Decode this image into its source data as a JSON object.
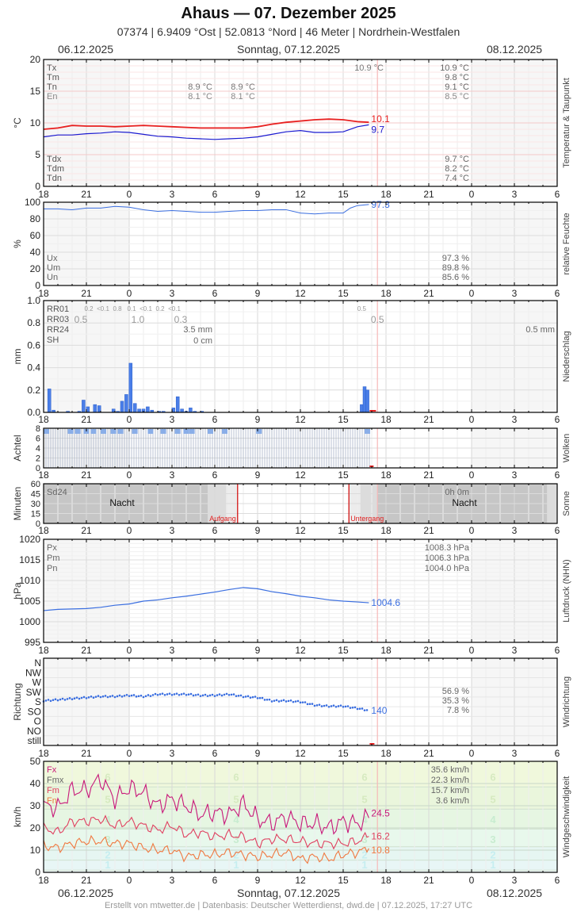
{
  "header": {
    "title": "Ahaus  —  07. Dezember 2025",
    "subtitle": "07374  |  6.9409 °Ost  |  52.0813 °Nord  |  46 Meter  |  Nordrhein-Westfalen",
    "date_left": "06.12.2025",
    "date_center": "Sonntag, 07.12.2025",
    "date_right": "08.12.2025"
  },
  "footer": {
    "credit": "Erstellt von mtwetter.de | Datenbasis: Deutscher Wetterdienst, dwd.de | 07.12.2025, 17:27 UTC"
  },
  "x_axis": {
    "ticks": [
      "18",
      "21",
      "0",
      "3",
      "6",
      "9",
      "12",
      "15",
      "18",
      "21",
      "0",
      "3",
      "6"
    ],
    "now_hour_offset": 23.4
  },
  "chart_data": [
    {
      "id": "temperature",
      "type": "line",
      "title": "Temperatur & Taupunkt",
      "ylabel": "°C",
      "ylim": [
        0,
        20
      ],
      "yticks": [
        "0",
        "5",
        "10",
        "15",
        "20"
      ],
      "series": [
        {
          "name": "Temperatur",
          "color": "#e82020",
          "last_label": "10.1",
          "x": [
            0,
            1,
            2,
            3,
            4,
            5,
            6,
            7,
            8,
            9,
            10,
            11,
            12,
            13,
            14,
            15,
            16,
            17,
            18,
            19,
            20,
            21,
            22,
            22.8
          ],
          "values": [
            9.0,
            9.2,
            9.6,
            9.5,
            9.5,
            9.4,
            9.5,
            9.6,
            9.5,
            9.4,
            9.3,
            9.2,
            9.2,
            9.2,
            9.2,
            9.4,
            9.8,
            10.1,
            10.3,
            10.5,
            10.6,
            10.5,
            10.2,
            10.1
          ]
        },
        {
          "name": "Taupunkt",
          "color": "#1a1ad0",
          "last_label": "9.7",
          "x": [
            0,
            1,
            2,
            3,
            4,
            5,
            6,
            7,
            8,
            9,
            10,
            11,
            12,
            13,
            14,
            15,
            16,
            17,
            18,
            19,
            20,
            21,
            22,
            22.8
          ],
          "values": [
            7.8,
            8.1,
            8.1,
            8.3,
            8.4,
            8.6,
            8.5,
            8.2,
            7.9,
            7.8,
            7.6,
            7.5,
            7.4,
            7.5,
            7.6,
            7.8,
            8.2,
            8.6,
            8.8,
            8.5,
            8.5,
            8.6,
            9.4,
            9.7
          ]
        }
      ],
      "stats_left": {
        "Tx": "",
        "Tm": "",
        "Tn": "",
        "En": ""
      },
      "stats_mid": [
        {
          "Tn": "8.9 °C",
          "En": "8.1 °C"
        },
        {
          "Tn": "8.9 °C",
          "En": "8.1 °C"
        }
      ],
      "stats_center_tx": "10.9 °C",
      "stats_right": {
        "Tx": "10.9 °C",
        "Tm": "9.8 °C",
        "Tn": "9.1 °C",
        "En": "8.5 °C",
        "Tdx": "9.7 °C",
        "Tdm": "8.2 °C",
        "Tdn": "7.4 °C"
      },
      "labels": {
        "Tx": "Tx",
        "Tm": "Tm",
        "Tn": "Tn",
        "En": "En",
        "Tdx": "Tdx",
        "Tdm": "Tdm",
        "Tdn": "Tdn"
      }
    },
    {
      "id": "humidity",
      "type": "line",
      "title": "relative Feuchte",
      "ylabel": "%",
      "ylim": [
        0,
        100
      ],
      "yticks": [
        "0",
        "20",
        "40",
        "60",
        "80",
        "100"
      ],
      "series": [
        {
          "name": "Feuchte",
          "color": "#3a6ee0",
          "last_label": "97.3",
          "x": [
            0,
            1,
            2,
            3,
            4,
            5,
            6,
            7,
            8,
            9,
            10,
            11,
            12,
            13,
            14,
            15,
            16,
            17,
            18,
            19,
            20,
            21,
            21.5,
            22,
            22.8
          ],
          "values": [
            92,
            92,
            91,
            93,
            93,
            95,
            94,
            91,
            89,
            90,
            89,
            88,
            88,
            89,
            90,
            90,
            91,
            91,
            87,
            86,
            87,
            87,
            93,
            96,
            97.3
          ]
        }
      ],
      "labels": {
        "Ux": "Ux",
        "Um": "Um",
        "Un": "Un"
      },
      "stats_right": {
        "Ux": "97.3 %",
        "Um": "89.8 %",
        "Un": "85.6 %"
      }
    },
    {
      "id": "precipitation",
      "type": "bar",
      "title": "Niederschlag",
      "ylabel": "mm",
      "ylim": [
        0,
        1.0
      ],
      "yticks": [
        "0.0",
        "0.2",
        "0.4",
        "0.6",
        "0.8",
        "1.0"
      ],
      "bars": [
        {
          "x": 0.4,
          "v": 0.21
        },
        {
          "x": 0.7,
          "v": 0.02
        },
        {
          "x": 1.7,
          "v": 0.01
        },
        {
          "x": 2.5,
          "v": 0.01
        },
        {
          "x": 2.8,
          "v": 0.11
        },
        {
          "x": 3.1,
          "v": 0.05
        },
        {
          "x": 3.6,
          "v": 0.07
        },
        {
          "x": 3.9,
          "v": 0.06
        },
        {
          "x": 4.9,
          "v": 0.03
        },
        {
          "x": 5.2,
          "v": 0.01
        },
        {
          "x": 5.5,
          "v": 0.1
        },
        {
          "x": 5.8,
          "v": 0.16
        },
        {
          "x": 6.1,
          "v": 0.44
        },
        {
          "x": 6.4,
          "v": 0.08
        },
        {
          "x": 6.7,
          "v": 0.03
        },
        {
          "x": 7.0,
          "v": 0.03
        },
        {
          "x": 7.3,
          "v": 0.05
        },
        {
          "x": 7.6,
          "v": 0.02
        },
        {
          "x": 8.1,
          "v": 0.01
        },
        {
          "x": 8.4,
          "v": 0.01
        },
        {
          "x": 9.1,
          "v": 0.04
        },
        {
          "x": 9.4,
          "v": 0.14
        },
        {
          "x": 9.7,
          "v": 0.03
        },
        {
          "x": 10.0,
          "v": 0.01
        },
        {
          "x": 10.3,
          "v": 0.04
        },
        {
          "x": 10.6,
          "v": 0.01
        },
        {
          "x": 11.1,
          "v": 0.01
        },
        {
          "x": 22.3,
          "v": 0.07
        },
        {
          "x": 22.5,
          "v": 0.23
        },
        {
          "x": 22.7,
          "v": 0.2
        }
      ],
      "labels": {
        "RR01": "RR01",
        "RR03": "RR03",
        "RR24": "RR24",
        "SH": "SH"
      },
      "rr01": [
        {
          "x": 1.0,
          "v": "0.2"
        },
        {
          "x": 2.0,
          "v": "<0.1"
        },
        {
          "x": 3.0,
          "v": "0.8"
        },
        {
          "x": 4.0,
          "v": "0.1"
        },
        {
          "x": 5.0,
          "v": "<0.1"
        },
        {
          "x": 6.0,
          "v": "0.2"
        },
        {
          "x": 7.0,
          "v": "<0.1"
        },
        {
          "x": 22.3,
          "v": "0.5"
        }
      ],
      "rr03": [
        {
          "x": 1.5,
          "v": "0.5"
        },
        {
          "x": 5.5,
          "v": "1.0"
        },
        {
          "x": 8.5,
          "v": "0.3"
        },
        {
          "x": 23.4,
          "v": "0.5"
        }
      ],
      "rr24_left": "3.5 mm",
      "sh_left": "0 cm",
      "rr24_right": "0.5 mm"
    },
    {
      "id": "clouds",
      "type": "bar",
      "title": "Wolken",
      "ylabel": "Achtel",
      "ylim": [
        0,
        8
      ],
      "yticks": [
        "0",
        "2",
        "4",
        "6",
        "8"
      ],
      "note": "Bedeckt (8/8) durchgehend von 18 Uhr bis ca. 17 Uhr, hellblaue Markierungen oben"
    },
    {
      "id": "sunshine",
      "type": "area",
      "title": "Sonne",
      "ylabel": "Minuten",
      "ylim": [
        0,
        60
      ],
      "yticks": [
        "0",
        "15",
        "30",
        "45",
        "60"
      ],
      "labels": {
        "Sd24": "Sd24",
        "night_left": "Nacht",
        "night_right": "Nacht",
        "sunrise": "Aufgang",
        "sunset": "Untergang"
      },
      "sd24_right": "0h 0m",
      "sunrise_hour_offset": 13.6,
      "sunset_hour_offset": 21.4
    },
    {
      "id": "pressure",
      "type": "line",
      "title": "Luftdruck (NHN)",
      "ylabel": "hPa",
      "ylim": [
        995,
        1020
      ],
      "yticks": [
        "995",
        "1000",
        "1005",
        "1010",
        "1015",
        "1020"
      ],
      "series": [
        {
          "name": "Luftdruck",
          "color": "#3a6ee0",
          "last_label": "1004.6",
          "x": [
            0,
            1,
            2,
            3,
            4,
            5,
            6,
            7,
            8,
            9,
            10,
            11,
            12,
            13,
            14,
            15,
            16,
            17,
            18,
            19,
            20,
            21,
            22,
            22.8
          ],
          "values": [
            1002.7,
            1003.0,
            1003.1,
            1003.2,
            1003.5,
            1004.0,
            1004.3,
            1005.0,
            1005.3,
            1005.8,
            1006.2,
            1006.7,
            1007.2,
            1007.8,
            1008.3,
            1008.0,
            1007.3,
            1006.8,
            1006.2,
            1005.8,
            1005.3,
            1005.0,
            1004.8,
            1004.6
          ]
        }
      ],
      "labels": {
        "Px": "Px",
        "Pm": "Pm",
        "Pn": "Pn"
      },
      "stats_right": {
        "Px": "1008.3 hPa",
        "Pm": "1006.3 hPa",
        "Pn": "1004.0 hPa"
      }
    },
    {
      "id": "wind_direction",
      "type": "scatter",
      "title": "Windrichtung",
      "ylabel": "Richtung",
      "yticks": [
        "N",
        "NW",
        "W",
        "SW",
        "S",
        "SO",
        "O",
        "NO",
        "still"
      ],
      "series": [
        {
          "name": "Richtung",
          "color": "#3a6ee0",
          "last_label": "140",
          "x": [
            0,
            1,
            2,
            3,
            4,
            5,
            6,
            7,
            8,
            9,
            10,
            11,
            12,
            13,
            14,
            15,
            16,
            17,
            18,
            19,
            20,
            21,
            22,
            22.8
          ],
          "values": [
            185,
            190,
            195,
            200,
            205,
            205,
            210,
            205,
            215,
            215,
            215,
            210,
            210,
            215,
            205,
            200,
            185,
            185,
            180,
            165,
            160,
            160,
            150,
            140
          ]
        }
      ],
      "stats_right": [
        "56.9 %",
        "35.3 %",
        "7.8 %"
      ]
    },
    {
      "id": "wind_speed",
      "type": "line",
      "title": "Windgeschwindigkeit",
      "ylabel": "km/h",
      "ylim": [
        0,
        50
      ],
      "yticks": [
        "0",
        "10",
        "20",
        "30",
        "40",
        "50"
      ],
      "beaufort_labels": [
        "1",
        "2",
        "3",
        "4",
        "5",
        "6"
      ],
      "series": [
        {
          "name": "Fx",
          "color": "#c8187a",
          "last_label": "24.5",
          "x": [
            0,
            1,
            2,
            3,
            4,
            5,
            6,
            7,
            8,
            9,
            10,
            11,
            12,
            13,
            14,
            15,
            16,
            17,
            18,
            19,
            20,
            21,
            22,
            22.8
          ],
          "values": [
            30,
            29,
            37,
            37,
            42,
            33,
            38,
            36,
            30,
            33,
            30,
            26,
            27,
            26,
            31,
            24,
            22,
            25,
            22,
            22,
            20,
            23,
            22,
            24.5
          ]
        },
        {
          "name": "Fm",
          "color": "#e04060",
          "last_label": "16.2",
          "x": [
            0,
            1,
            2,
            3,
            4,
            5,
            6,
            7,
            8,
            9,
            10,
            11,
            12,
            13,
            14,
            15,
            16,
            17,
            18,
            19,
            20,
            21,
            22,
            22.8
          ],
          "values": [
            20,
            18,
            23,
            23,
            24,
            21,
            23,
            21,
            19,
            21,
            17,
            18,
            16,
            17,
            16,
            13,
            15,
            15,
            14,
            13,
            13,
            13,
            14,
            16.2
          ]
        },
        {
          "name": "Fn",
          "color": "#f07840",
          "last_label": "10.8",
          "x": [
            0,
            1,
            2,
            3,
            4,
            5,
            6,
            7,
            8,
            9,
            10,
            11,
            12,
            13,
            14,
            15,
            16,
            17,
            18,
            19,
            20,
            21,
            22,
            22.8
          ],
          "values": [
            12,
            11,
            13,
            14,
            14,
            13,
            13,
            11,
            10,
            10,
            7,
            8,
            8,
            9,
            8,
            7,
            8,
            9,
            6,
            7,
            6,
            8,
            9,
            10.8
          ]
        }
      ],
      "labels": {
        "Fx": "Fx",
        "Fmx": "Fmx",
        "Fm": "Fm",
        "Fn": "Fn"
      },
      "stats_right": {
        "Fx": "35.6 km/h",
        "Fmx": "22.3 km/h",
        "Fm": "15.7 km/h",
        "Fn": "3.6 km/h"
      }
    }
  ]
}
